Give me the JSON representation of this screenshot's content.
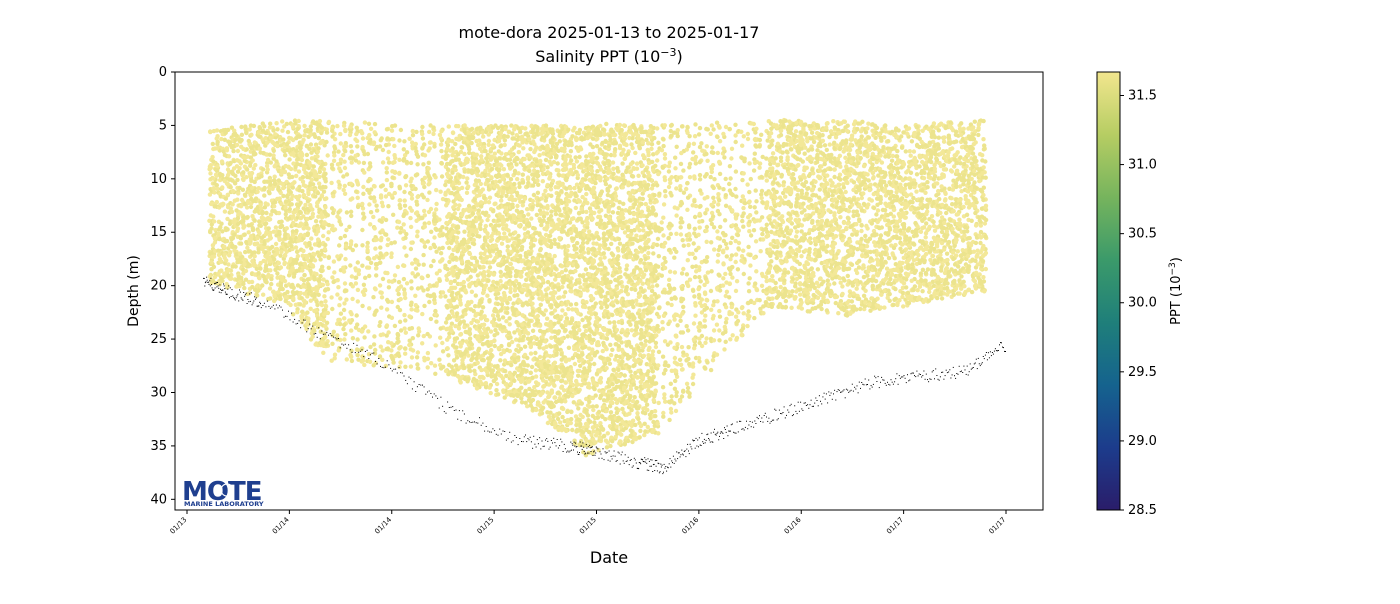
{
  "chart_data": {
    "type": "scatter",
    "title": "mote-dora 2025-01-13 to 2025-01-17",
    "subtitle_base": "Salinity PPT (10",
    "subtitle_exp": "−3",
    "subtitle_tail": ")",
    "xlabel": "Date",
    "ylabel": "Depth (m)",
    "xtick_labels": [
      "01/13",
      "01/14",
      "01/14",
      "01/15",
      "01/15",
      "01/16",
      "01/16",
      "01/17",
      "01/17"
    ],
    "xlim_days": [
      -0.06,
      4.09
    ],
    "ylim": [
      0,
      41
    ],
    "y_inverted": true,
    "yticks": [
      0,
      5,
      10,
      15,
      20,
      25,
      30,
      35,
      40
    ],
    "grid": false,
    "colorbar": {
      "label_base": "PPT (10",
      "label_exp": "−3",
      "label_tail": ")",
      "range": [
        28.5,
        31.67
      ],
      "ticks": [
        28.5,
        29.0,
        29.5,
        30.0,
        30.5,
        31.0,
        31.5
      ],
      "tick_labels": [
        "28.5",
        "29.0",
        "29.5",
        "30.0",
        "30.5",
        "31.0",
        "31.5"
      ],
      "colormap_stops": [
        "#2a1d6a",
        "#1c3c8c",
        "#15638e",
        "#1f7f7a",
        "#3b9a6a",
        "#76b45d",
        "#b6cd63",
        "#f2e68e"
      ]
    },
    "series": [
      {
        "kind": "salinity_profiles",
        "color": "#ece48e",
        "value_range_ppt": [
          31.5,
          31.67
        ],
        "casts": [
          {
            "t": 0.12,
            "top": 5.5,
            "bottom": 19.8
          },
          {
            "t": 0.5,
            "top": 4.5,
            "bottom": 21.8
          },
          {
            "t": 0.7,
            "top": 4.6,
            "bottom": 27.0
          },
          {
            "t": 1.3,
            "top": 5.0,
            "bottom": 28.5
          },
          {
            "t": 1.7,
            "top": 5.0,
            "bottom": 31.5
          },
          {
            "t": 1.9,
            "top": 5.0,
            "bottom": 34.0
          },
          {
            "t": 2.0,
            "top": 4.8,
            "bottom": 36.0
          },
          {
            "t": 2.35,
            "top": 5.0,
            "bottom": 34.0
          },
          {
            "t": 2.9,
            "top": 4.5,
            "bottom": 22.0
          },
          {
            "t": 3.3,
            "top": 4.5,
            "bottom": 22.8
          },
          {
            "t": 3.55,
            "top": 5.0,
            "bottom": 22.0
          },
          {
            "t": 4.0,
            "top": 4.5,
            "bottom": 20.5
          }
        ]
      },
      {
        "kind": "bottom_depth",
        "color": "#000000",
        "points": [
          {
            "t": 0.12,
            "depth": 19.5
          },
          {
            "t": 0.3,
            "depth": 20.5
          },
          {
            "t": 0.55,
            "depth": 21.5
          },
          {
            "t": 1.0,
            "depth": 24.5
          },
          {
            "t": 1.5,
            "depth": 27.5
          },
          {
            "t": 2.0,
            "depth": 32.0
          },
          {
            "t": 2.5,
            "depth": 34.5
          },
          {
            "t": 2.85,
            "depth": 35.0
          },
          {
            "t": 3.05,
            "depth": 35.5
          },
          {
            "t": 3.35,
            "depth": 36.5
          },
          {
            "t": 3.55,
            "depth": 37.0
          },
          {
            "t": 3.8,
            "depth": 34.5
          },
          {
            "t": 4.05,
            "depth": 33.5
          },
          {
            "t": 4.4,
            "depth": 32.0
          },
          {
            "t": 4.75,
            "depth": 30.5
          },
          {
            "t": 5.1,
            "depth": 29.0
          },
          {
            "t": 5.45,
            "depth": 28.5
          },
          {
            "t": 5.8,
            "depth": 28.0
          },
          {
            "t": 6.1,
            "depth": 25.5
          }
        ]
      }
    ]
  },
  "logo": {
    "main": "MOTE",
    "sub": "MARINE LABORATORY",
    "color": "#1f3f8f"
  }
}
